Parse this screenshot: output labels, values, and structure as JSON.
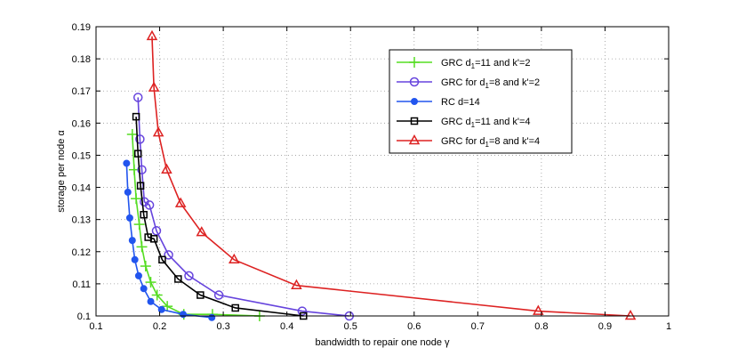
{
  "chart_data": {
    "type": "line",
    "title": "",
    "xlabel": "bandwidth to repair one node γ",
    "ylabel": "storage per node α",
    "xlim": [
      0.1,
      1.0
    ],
    "ylim": [
      0.1,
      0.19
    ],
    "xticks": [
      0.1,
      0.2,
      0.3,
      0.4,
      0.5,
      0.6,
      0.7,
      0.8,
      0.9,
      1.0
    ],
    "yticks": [
      0.1,
      0.11,
      0.12,
      0.13,
      0.14,
      0.15,
      0.16,
      0.17,
      0.18,
      0.19
    ],
    "xtick_labels": [
      "0.1",
      "0.2",
      "0.3",
      "0.4",
      "0.5",
      "0.6",
      "0.7",
      "0.8",
      "0.9",
      "1"
    ],
    "ytick_labels": [
      "0.1",
      "0.11",
      "0.12",
      "0.13",
      "0.14",
      "0.15",
      "0.16",
      "0.17",
      "0.18",
      "0.19"
    ],
    "grid": true,
    "legend_position": "top-right",
    "series": [
      {
        "name": "GRC d1=11 and k'=2",
        "legend": {
          "pre": "GRC d",
          "sub": "1",
          "post": "=11 and k'=2"
        },
        "color": "#55dd22",
        "marker": "plus",
        "x": [
          0.157,
          0.16,
          0.163,
          0.168,
          0.172,
          0.178,
          0.186,
          0.196,
          0.212,
          0.238,
          0.283,
          0.357
        ],
        "y": [
          0.1565,
          0.1455,
          0.1365,
          0.1285,
          0.1215,
          0.1155,
          0.1105,
          0.1065,
          0.103,
          0.1005,
          0.1005,
          0.1
        ]
      },
      {
        "name": "GRC for d1=8 and k'=2",
        "legend": {
          "pre": "GRC for d",
          "sub": "1",
          "post": "=8 and k'=2"
        },
        "color": "#6644dd",
        "marker": "circle",
        "x": [
          0.166,
          0.169,
          0.172,
          0.176,
          0.184,
          0.195,
          0.214,
          0.246,
          0.293,
          0.424,
          0.498
        ],
        "y": [
          0.168,
          0.155,
          0.1455,
          0.1355,
          0.1345,
          0.1265,
          0.119,
          0.1125,
          0.1065,
          0.1015,
          0.1
        ]
      },
      {
        "name": "RC d=14",
        "legend": {
          "pre": "RC d=14",
          "sub": "",
          "post": ""
        },
        "color": "#2255ee",
        "marker": "dot",
        "x": [
          0.148,
          0.15,
          0.153,
          0.157,
          0.161,
          0.167,
          0.175,
          0.186,
          0.203,
          0.237,
          0.282
        ],
        "y": [
          0.1475,
          0.1385,
          0.1305,
          0.1235,
          0.1175,
          0.1125,
          0.1085,
          0.1045,
          0.102,
          0.1005,
          0.0995
        ]
      },
      {
        "name": "GRC d1=11 and k'=4",
        "legend": {
          "pre": "GRC d",
          "sub": "1",
          "post": "=11 and k'=4"
        },
        "color": "#000000",
        "marker": "square",
        "x": [
          0.163,
          0.166,
          0.17,
          0.175,
          0.182,
          0.191,
          0.204,
          0.229,
          0.264,
          0.319,
          0.426
        ],
        "y": [
          0.162,
          0.1505,
          0.1405,
          0.1315,
          0.1245,
          0.124,
          0.1175,
          0.1115,
          0.1065,
          0.1025,
          0.1
        ]
      },
      {
        "name": "GRC for d1=8 and k'=4",
        "legend": {
          "pre": "GRC for d",
          "sub": "1",
          "post": "=8 and k'=4"
        },
        "color": "#dd2222",
        "marker": "triangle",
        "x": [
          0.188,
          0.191,
          0.198,
          0.211,
          0.233,
          0.266,
          0.317,
          0.415,
          0.795,
          0.94
        ],
        "y": [
          0.187,
          0.171,
          0.157,
          0.1455,
          0.135,
          0.126,
          0.1175,
          0.1095,
          0.1015,
          0.1
        ]
      }
    ]
  }
}
